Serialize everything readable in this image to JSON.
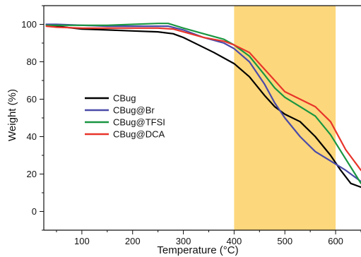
{
  "chart_data": {
    "type": "line",
    "xlabel": "Temperature (°C)",
    "ylabel": "Weight (%)",
    "xlim": [
      25,
      650
    ],
    "ylim": [
      -10,
      110
    ],
    "x_ticks": [
      100,
      200,
      300,
      400,
      500,
      600
    ],
    "y_ticks": [
      0,
      20,
      40,
      60,
      80,
      100
    ],
    "legend_position": "center-left",
    "highlight_region": {
      "x_start": 400,
      "x_end": 600,
      "color": "#fdd77c"
    },
    "series": [
      {
        "name": "CBug",
        "color": "#000000",
        "points": [
          [
            30,
            100
          ],
          [
            50,
            99
          ],
          [
            100,
            97.5
          ],
          [
            150,
            97
          ],
          [
            200,
            96.5
          ],
          [
            250,
            96
          ],
          [
            280,
            95
          ],
          [
            300,
            93
          ],
          [
            330,
            89
          ],
          [
            360,
            85
          ],
          [
            400,
            79
          ],
          [
            430,
            72
          ],
          [
            460,
            62
          ],
          [
            480,
            56
          ],
          [
            500,
            52
          ],
          [
            530,
            48
          ],
          [
            560,
            40
          ],
          [
            590,
            30
          ],
          [
            610,
            22
          ],
          [
            630,
            15
          ],
          [
            650,
            13
          ]
        ]
      },
      {
        "name": "CBug@Br",
        "color": "#4a4aa8",
        "points": [
          [
            30,
            100
          ],
          [
            50,
            100
          ],
          [
            100,
            99.5
          ],
          [
            150,
            99
          ],
          [
            200,
            99
          ],
          [
            250,
            99
          ],
          [
            270,
            99
          ],
          [
            300,
            97
          ],
          [
            340,
            93
          ],
          [
            380,
            90
          ],
          [
            400,
            87
          ],
          [
            430,
            80
          ],
          [
            460,
            68
          ],
          [
            480,
            58
          ],
          [
            500,
            50
          ],
          [
            530,
            40
          ],
          [
            560,
            32
          ],
          [
            590,
            27
          ],
          [
            620,
            22
          ],
          [
            650,
            16
          ]
        ]
      },
      {
        "name": "CBug@TFSI",
        "color": "#1a9641",
        "points": [
          [
            30,
            99.5
          ],
          [
            50,
            99.5
          ],
          [
            100,
            99.5
          ],
          [
            150,
            99.5
          ],
          [
            200,
            100
          ],
          [
            250,
            100.5
          ],
          [
            270,
            100.5
          ],
          [
            300,
            98
          ],
          [
            340,
            95
          ],
          [
            380,
            92
          ],
          [
            400,
            89
          ],
          [
            430,
            83
          ],
          [
            460,
            73
          ],
          [
            480,
            66
          ],
          [
            500,
            61
          ],
          [
            530,
            56
          ],
          [
            560,
            51
          ],
          [
            590,
            41
          ],
          [
            620,
            28
          ],
          [
            650,
            15
          ]
        ]
      },
      {
        "name": "CBug@DCA",
        "color": "#e8342a",
        "points": [
          [
            30,
            99
          ],
          [
            50,
            98.5
          ],
          [
            100,
            98
          ],
          [
            150,
            98
          ],
          [
            200,
            98
          ],
          [
            250,
            98
          ],
          [
            280,
            97.5
          ],
          [
            300,
            96
          ],
          [
            340,
            93
          ],
          [
            380,
            91
          ],
          [
            400,
            89
          ],
          [
            430,
            85
          ],
          [
            460,
            76
          ],
          [
            480,
            70
          ],
          [
            500,
            64
          ],
          [
            530,
            60
          ],
          [
            560,
            56
          ],
          [
            590,
            48
          ],
          [
            620,
            33
          ],
          [
            650,
            22
          ]
        ]
      }
    ]
  }
}
